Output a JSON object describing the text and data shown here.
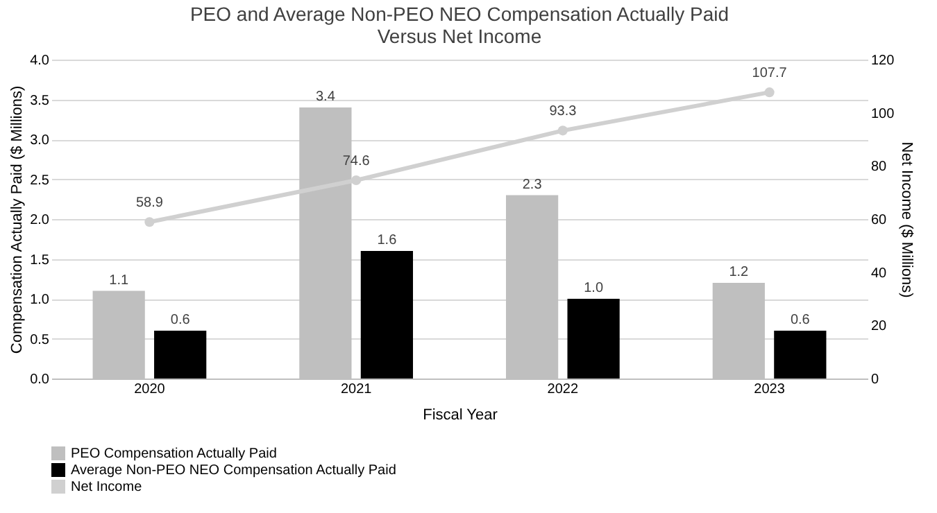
{
  "chart_data": {
    "type": "bar",
    "title": "PEO and Average Non-PEO NEO Compensation Actually Paid\nVersus Net Income",
    "xlabel": "Fiscal Year",
    "ylabel": "Compensation Actually Paid ($ Millions)",
    "y2label": "Net Income ($ Millions)",
    "categories": [
      "2020",
      "2021",
      "2022",
      "2023"
    ],
    "series": [
      {
        "name": "PEO Compensation Actually Paid",
        "color": "#bfbfbf",
        "values": [
          1.1,
          3.4,
          2.3,
          1.2
        ],
        "value_labels": [
          "1.1",
          "3.4",
          "2.3",
          "1.2"
        ]
      },
      {
        "name": "Average Non-PEO NEO Compensation Actually Paid",
        "color": "#000000",
        "values": [
          0.6,
          1.6,
          1.0,
          0.6
        ],
        "value_labels": [
          "0.6",
          "1.6",
          "1.0",
          "0.6"
        ]
      },
      {
        "name": "Net Income",
        "type": "line",
        "axis": "y2",
        "color": "#d0d0d0",
        "marker": "circle",
        "values": [
          58.9,
          74.6,
          93.3,
          107.7
        ],
        "value_labels": [
          "58.9",
          "74.6",
          "93.3",
          "107.7"
        ]
      }
    ],
    "ylim": [
      0,
      4
    ],
    "yticks": [
      {
        "value": 0,
        "label": "0.0"
      },
      {
        "value": 0.5,
        "label": "0.5"
      },
      {
        "value": 1,
        "label": "1.0"
      },
      {
        "value": 1.5,
        "label": "1.5"
      },
      {
        "value": 2,
        "label": "2.0"
      },
      {
        "value": 2.5,
        "label": "2.5"
      },
      {
        "value": 3,
        "label": "3.0"
      },
      {
        "value": 3.5,
        "label": "3.5"
      },
      {
        "value": 4,
        "label": "4.0"
      }
    ],
    "y2lim": [
      0,
      120
    ],
    "y2ticks": [
      0,
      20,
      40,
      60,
      80,
      100,
      120
    ],
    "grid": "y",
    "legend": "bottom"
  }
}
